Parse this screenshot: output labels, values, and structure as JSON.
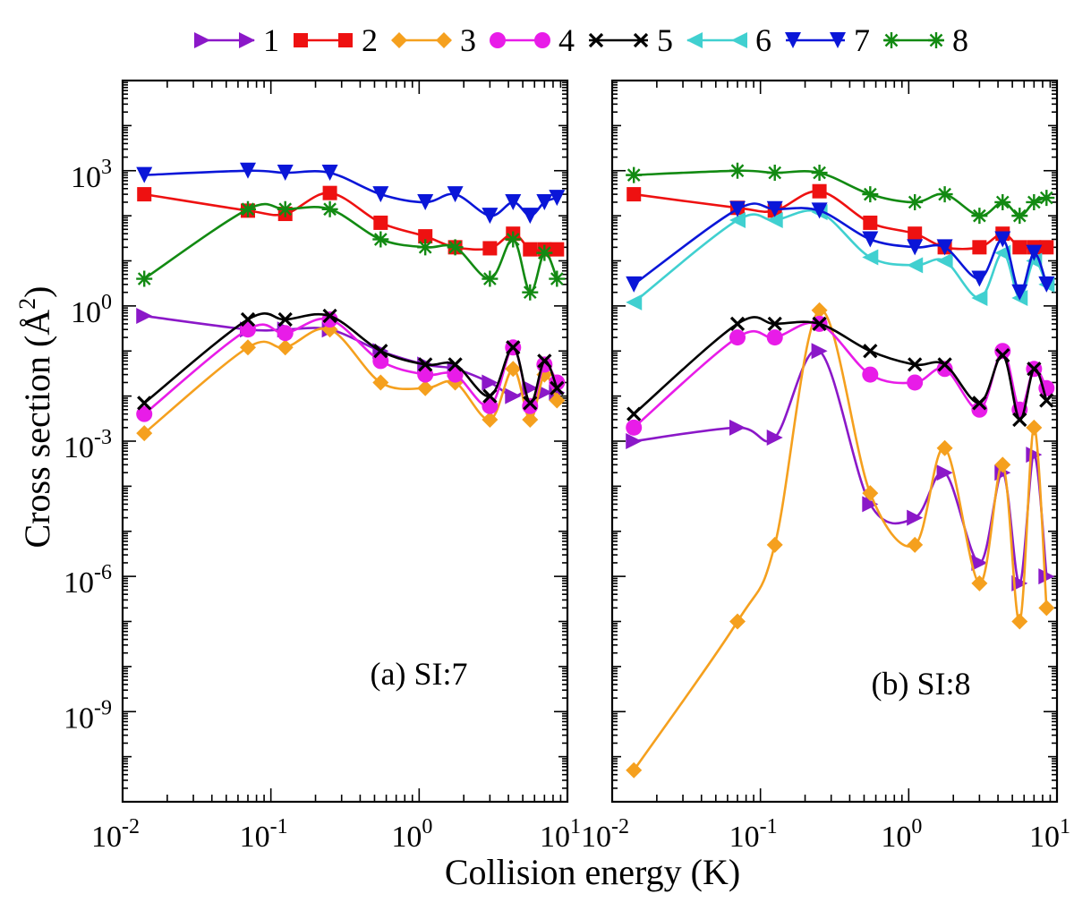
{
  "figure": {
    "xlabel": "Collision energy (K)",
    "ylabel_main": "Cross section (",
    "ylabel_unit": "Å",
    "ylabel_exp": "2",
    "ylabel_close": ")"
  },
  "legend": [
    {
      "label": "1",
      "color": "#8B18C8",
      "marker": "triangle-right"
    },
    {
      "label": "2",
      "color": "#EE1111",
      "marker": "square"
    },
    {
      "label": "3",
      "color": "#F5A01E",
      "marker": "diamond"
    },
    {
      "label": "4",
      "color": "#E81CE8",
      "marker": "circle"
    },
    {
      "label": "5",
      "color": "#000000",
      "marker": "x"
    },
    {
      "label": "6",
      "color": "#40D0D0",
      "marker": "triangle-left"
    },
    {
      "label": "7",
      "color": "#0A16D8",
      "marker": "triangle-down"
    },
    {
      "label": "8",
      "color": "#128A12",
      "marker": "asterisk"
    }
  ],
  "chart_data": [
    {
      "type": "line",
      "panel_label": "(a) SI:7",
      "xscale": "log",
      "yscale": "log",
      "xlim": [
        0.01,
        10
      ],
      "ylim": [
        1e-11,
        100000.0
      ],
      "x_ticks": [
        {
          "base": "10",
          "exp": "-2"
        },
        {
          "base": "10",
          "exp": "-1"
        },
        {
          "base": "10",
          "exp": "0"
        },
        {
          "base": "10",
          "exp": "1"
        }
      ],
      "y_ticks": [
        {
          "base": "10",
          "exp": "-9",
          "value": -9
        },
        {
          "base": "10",
          "exp": "-6",
          "value": -6
        },
        {
          "base": "10",
          "exp": "-3",
          "value": -3
        },
        {
          "base": "10",
          "exp": "0",
          "value": 0
        },
        {
          "base": "10",
          "exp": "3",
          "value": 3
        }
      ],
      "x": [
        0.014,
        0.07,
        0.125,
        0.25,
        0.55,
        1.1,
        1.75,
        3.0,
        4.3,
        5.6,
        7.0,
        8.5
      ],
      "series": [
        {
          "name": "1",
          "values": [
            0.6,
            0.3,
            0.3,
            0.3,
            0.1,
            0.05,
            0.04,
            0.02,
            0.01,
            0.015,
            0.012,
            0.012
          ]
        },
        {
          "name": "2",
          "values": [
            300,
            130,
            110,
            320,
            70,
            35,
            20,
            19,
            40,
            18,
            18,
            18
          ]
        },
        {
          "name": "3",
          "values": [
            0.0015,
            0.12,
            0.12,
            0.3,
            0.02,
            0.015,
            0.02,
            0.003,
            0.04,
            0.003,
            0.03,
            0.008
          ]
        },
        {
          "name": "4",
          "values": [
            0.004,
            0.3,
            0.25,
            0.5,
            0.06,
            0.03,
            0.03,
            0.006,
            0.12,
            0.006,
            0.05,
            0.02
          ]
        },
        {
          "name": "5",
          "values": [
            0.007,
            0.5,
            0.5,
            0.6,
            0.1,
            0.05,
            0.05,
            0.01,
            0.12,
            0.007,
            0.06,
            0.015
          ]
        },
        {
          "name": "7",
          "values": [
            800,
            1000,
            900,
            900,
            300,
            200,
            300,
            100,
            200,
            100,
            200,
            250
          ]
        },
        {
          "name": "8",
          "values": [
            4,
            140,
            140,
            140,
            30,
            20,
            20,
            4,
            30,
            2,
            15,
            4
          ]
        }
      ]
    },
    {
      "type": "line",
      "panel_label": "(b) SI:8",
      "xscale": "log",
      "yscale": "log",
      "xlim": [
        0.01,
        10
      ],
      "ylim": [
        1e-11,
        100000.0
      ],
      "x_ticks": [
        {
          "base": "10",
          "exp": "-2"
        },
        {
          "base": "10",
          "exp": "-1"
        },
        {
          "base": "10",
          "exp": "0"
        },
        {
          "base": "10",
          "exp": "1"
        }
      ],
      "x": [
        0.014,
        0.07,
        0.125,
        0.25,
        0.55,
        1.1,
        1.75,
        3.0,
        4.3,
        5.6,
        7.0,
        8.5
      ],
      "series": [
        {
          "name": "1",
          "values": [
            0.001,
            0.002,
            0.0012,
            0.1,
            4e-05,
            2e-05,
            0.0002,
            2e-06,
            0.0002,
            7e-07,
            0.0005,
            1e-06
          ]
        },
        {
          "name": "2",
          "values": [
            300,
            150,
            130,
            350,
            70,
            40,
            20,
            20,
            40,
            20,
            20,
            20
          ]
        },
        {
          "name": "3",
          "values": [
            5e-11,
            1e-07,
            5e-06,
            0.8,
            7e-05,
            5e-06,
            0.0007,
            7e-07,
            0.0003,
            1e-07,
            0.002,
            2e-07
          ]
        },
        {
          "name": "4",
          "values": [
            0.002,
            0.2,
            0.2,
            0.4,
            0.03,
            0.02,
            0.04,
            0.005,
            0.1,
            0.005,
            0.04,
            0.015
          ]
        },
        {
          "name": "5",
          "values": [
            0.004,
            0.4,
            0.4,
            0.4,
            0.1,
            0.05,
            0.05,
            0.007,
            0.08,
            0.003,
            0.04,
            0.008
          ]
        },
        {
          "name": "6",
          "values": [
            1.2,
            80,
            80,
            120,
            12,
            8,
            10,
            1.5,
            15,
            1.5,
            10,
            3
          ]
        },
        {
          "name": "7",
          "values": [
            3,
            140,
            140,
            130,
            30,
            20,
            20,
            4,
            30,
            2,
            15,
            3
          ]
        },
        {
          "name": "8",
          "values": [
            800,
            1000,
            900,
            900,
            300,
            200,
            300,
            100,
            200,
            100,
            200,
            250
          ]
        }
      ]
    }
  ]
}
